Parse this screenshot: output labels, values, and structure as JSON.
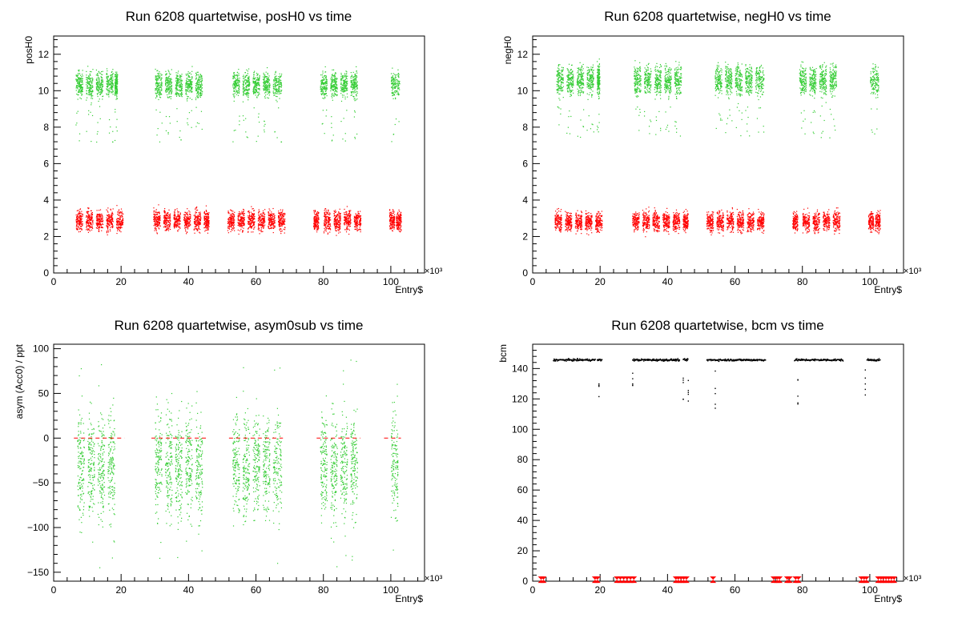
{
  "chart_data": [
    {
      "type": "scatter",
      "title": "Run 6208 quartetwise, posH0 vs time",
      "xlabel": "Entry$",
      "ylabel": "posH0",
      "x_multiplier": "×10³",
      "xlim": [
        0,
        110
      ],
      "ylim": [
        0,
        13
      ],
      "x_ticks": [
        0,
        20,
        40,
        60,
        80,
        100
      ],
      "y_ticks": [
        0,
        2,
        4,
        6,
        8,
        10,
        12
      ],
      "grid": false,
      "series": [
        {
          "color": "#33cc33",
          "bands": [
            [
              6.5,
              8.5
            ],
            [
              9.5,
              11.5
            ],
            [
              12.5,
              14.5
            ],
            [
              15.5,
              17.5
            ],
            [
              18,
              18.8
            ],
            [
              30,
              32
            ],
            [
              33,
              35
            ],
            [
              36,
              38
            ],
            [
              39,
              41
            ],
            [
              42,
              44
            ],
            [
              53,
              55
            ],
            [
              56,
              58
            ],
            [
              59,
              61
            ],
            [
              62,
              64
            ],
            [
              65,
              67.5
            ],
            [
              79,
              81
            ],
            [
              82,
              84
            ],
            [
              85,
              87
            ],
            [
              88,
              90
            ],
            [
              100,
              102.5
            ]
          ],
          "y_range": [
            9.5,
            11.2
          ],
          "outlier_range": [
            7.2,
            9.2
          ]
        },
        {
          "color": "#ff0000",
          "bands": [
            [
              6.5,
              8.5
            ],
            [
              9.5,
              11.5
            ],
            [
              12.5,
              14.5
            ],
            [
              15.5,
              17.5
            ],
            [
              18.5,
              20.5
            ],
            [
              29.5,
              31.5
            ],
            [
              32.5,
              34.5
            ],
            [
              35.5,
              37.5
            ],
            [
              38.5,
              40.5
            ],
            [
              41.5,
              43.5
            ],
            [
              44.5,
              46
            ],
            [
              51.5,
              53.5
            ],
            [
              54.5,
              56.5
            ],
            [
              57.5,
              59.5
            ],
            [
              60.5,
              62.5
            ],
            [
              63.5,
              65.5
            ],
            [
              66.5,
              68.5
            ],
            [
              77,
              78.5
            ],
            [
              80,
              82
            ],
            [
              83,
              85
            ],
            [
              86,
              88
            ],
            [
              89,
              91
            ],
            [
              99.5,
              101
            ],
            [
              101.5,
              103
            ]
          ],
          "y_range": [
            2.2,
            3.6
          ]
        }
      ]
    },
    {
      "type": "scatter",
      "title": "Run 6208 quartetwise, negH0 vs time",
      "xlabel": "Entry$",
      "ylabel": "negH0",
      "x_multiplier": "×10³",
      "xlim": [
        0,
        110
      ],
      "ylim": [
        0,
        13
      ],
      "x_ticks": [
        0,
        20,
        40,
        60,
        80,
        100
      ],
      "y_ticks": [
        0,
        2,
        4,
        6,
        8,
        10,
        12
      ],
      "grid": false,
      "series": [
        {
          "color": "#33cc33",
          "bands": [
            [
              7,
              9
            ],
            [
              10,
              12
            ],
            [
              13,
              15
            ],
            [
              16,
              18
            ],
            [
              19,
              19.8
            ],
            [
              30,
              32
            ],
            [
              33,
              35
            ],
            [
              36,
              38
            ],
            [
              39,
              41
            ],
            [
              42,
              44
            ],
            [
              54,
              56
            ],
            [
              57,
              59
            ],
            [
              60,
              62
            ],
            [
              63,
              65
            ],
            [
              66,
              68.5
            ],
            [
              79,
              81
            ],
            [
              82,
              84
            ],
            [
              85,
              87
            ],
            [
              88,
              90
            ],
            [
              100,
              102.5
            ]
          ],
          "y_range": [
            9.6,
            11.6
          ],
          "outlier_range": [
            7.4,
            9.2
          ]
        },
        {
          "color": "#ff0000",
          "bands": [
            [
              6.5,
              8.5
            ],
            [
              9.5,
              11.5
            ],
            [
              12.5,
              14.5
            ],
            [
              15.5,
              17.5
            ],
            [
              18.5,
              20.5
            ],
            [
              29.5,
              31.5
            ],
            [
              32.5,
              34.5
            ],
            [
              35.5,
              37.5
            ],
            [
              38.5,
              40.5
            ],
            [
              41.5,
              43.5
            ],
            [
              44.5,
              46
            ],
            [
              51.5,
              53.5
            ],
            [
              54.5,
              56.5
            ],
            [
              57.5,
              59.5
            ],
            [
              60.5,
              62.5
            ],
            [
              63.5,
              65.5
            ],
            [
              66.5,
              68.5
            ],
            [
              77,
              78.5
            ],
            [
              80,
              82
            ],
            [
              83,
              85
            ],
            [
              86,
              88
            ],
            [
              89,
              91
            ],
            [
              99.5,
              101
            ],
            [
              101.5,
              103
            ]
          ],
          "y_range": [
            2.2,
            3.5
          ]
        }
      ]
    },
    {
      "type": "scatter",
      "title": "Run 6208 quartetwise, asym0sub vs time",
      "xlabel": "Entry$",
      "ylabel": "asym (Acc0) / ppt",
      "x_multiplier": "×10³",
      "xlim": [
        0,
        110
      ],
      "ylim": [
        -160,
        105
      ],
      "x_ticks": [
        0,
        20,
        40,
        60,
        80,
        100
      ],
      "y_ticks": [
        -150,
        -100,
        -50,
        0,
        50,
        100
      ],
      "grid": false,
      "series": [
        {
          "color": "#33cc33",
          "bands": [
            [
              7,
              9
            ],
            [
              10,
              12
            ],
            [
              13,
              15
            ],
            [
              16,
              18
            ],
            [
              30,
              32
            ],
            [
              33,
              35
            ],
            [
              36,
              38
            ],
            [
              39,
              41
            ],
            [
              42,
              44
            ],
            [
              53,
              55
            ],
            [
              56,
              58
            ],
            [
              59,
              61
            ],
            [
              62,
              64
            ],
            [
              65,
              67.5
            ],
            [
              79,
              81
            ],
            [
              82,
              84
            ],
            [
              85,
              87
            ],
            [
              88,
              90
            ],
            [
              100,
              102
            ]
          ],
          "y_range": [
            -100,
            40
          ],
          "outlier_range": [
            -145,
            90
          ]
        },
        {
          "color": "#ff0000",
          "dashed_hlines": [
            {
              "y": 0,
              "x": [
                6,
                21
              ]
            },
            {
              "y": 0,
              "x": [
                29,
                46
              ]
            },
            {
              "y": 0,
              "x": [
                52,
                68
              ]
            },
            {
              "y": 0,
              "x": [
                78,
                91
              ]
            },
            {
              "y": 0,
              "x": [
                98,
                103
              ]
            }
          ]
        }
      ]
    },
    {
      "type": "scatter",
      "title": "Run 6208 quartetwise, bcm vs time",
      "xlabel": "Entry$",
      "ylabel": "bcm",
      "x_multiplier": "×10³",
      "xlim": [
        0,
        110
      ],
      "ylim": [
        0,
        156
      ],
      "x_ticks": [
        0,
        20,
        40,
        60,
        80,
        100
      ],
      "y_ticks": [
        0,
        20,
        40,
        60,
        80,
        100,
        120,
        140
      ],
      "grid": false,
      "series": [
        {
          "color": "#000000",
          "segments": [
            [
              6,
              18.5
            ],
            [
              19,
              20.5
            ],
            [
              29.5,
              43.5
            ],
            [
              44.5,
              46
            ],
            [
              51.5,
              69
            ],
            [
              77.5,
              92
            ],
            [
              99,
              103
            ]
          ],
          "y": 146,
          "dips": [
            {
              "x": 19.5,
              "y": [
                113,
                135
              ]
            },
            {
              "x": 29.5,
              "y": [
                118,
                140
              ]
            },
            {
              "x": 44.5,
              "y": [
                118,
                135
              ]
            },
            {
              "x": 46,
              "y": [
                118,
                135
              ]
            },
            {
              "x": 54,
              "y": [
                113,
                140
              ]
            },
            {
              "x": 78.5,
              "y": [
                113,
                140
              ]
            },
            {
              "x": 98.5,
              "y": [
                113,
                140
              ]
            }
          ]
        },
        {
          "color": "#ff0000",
          "markers": [
            2.5,
            3.2,
            18.5,
            19.2,
            25,
            26,
            27,
            28,
            29,
            30,
            42.5,
            43.2,
            44,
            44.8,
            45.6,
            53.5,
            71.5,
            72.5,
            73.2,
            75.5,
            76.2,
            78,
            78.8,
            97.5,
            98.3,
            99,
            102.5,
            103.3,
            104,
            104.8,
            105.6,
            106.4,
            107.2
          ],
          "y": 1
        }
      ]
    }
  ]
}
